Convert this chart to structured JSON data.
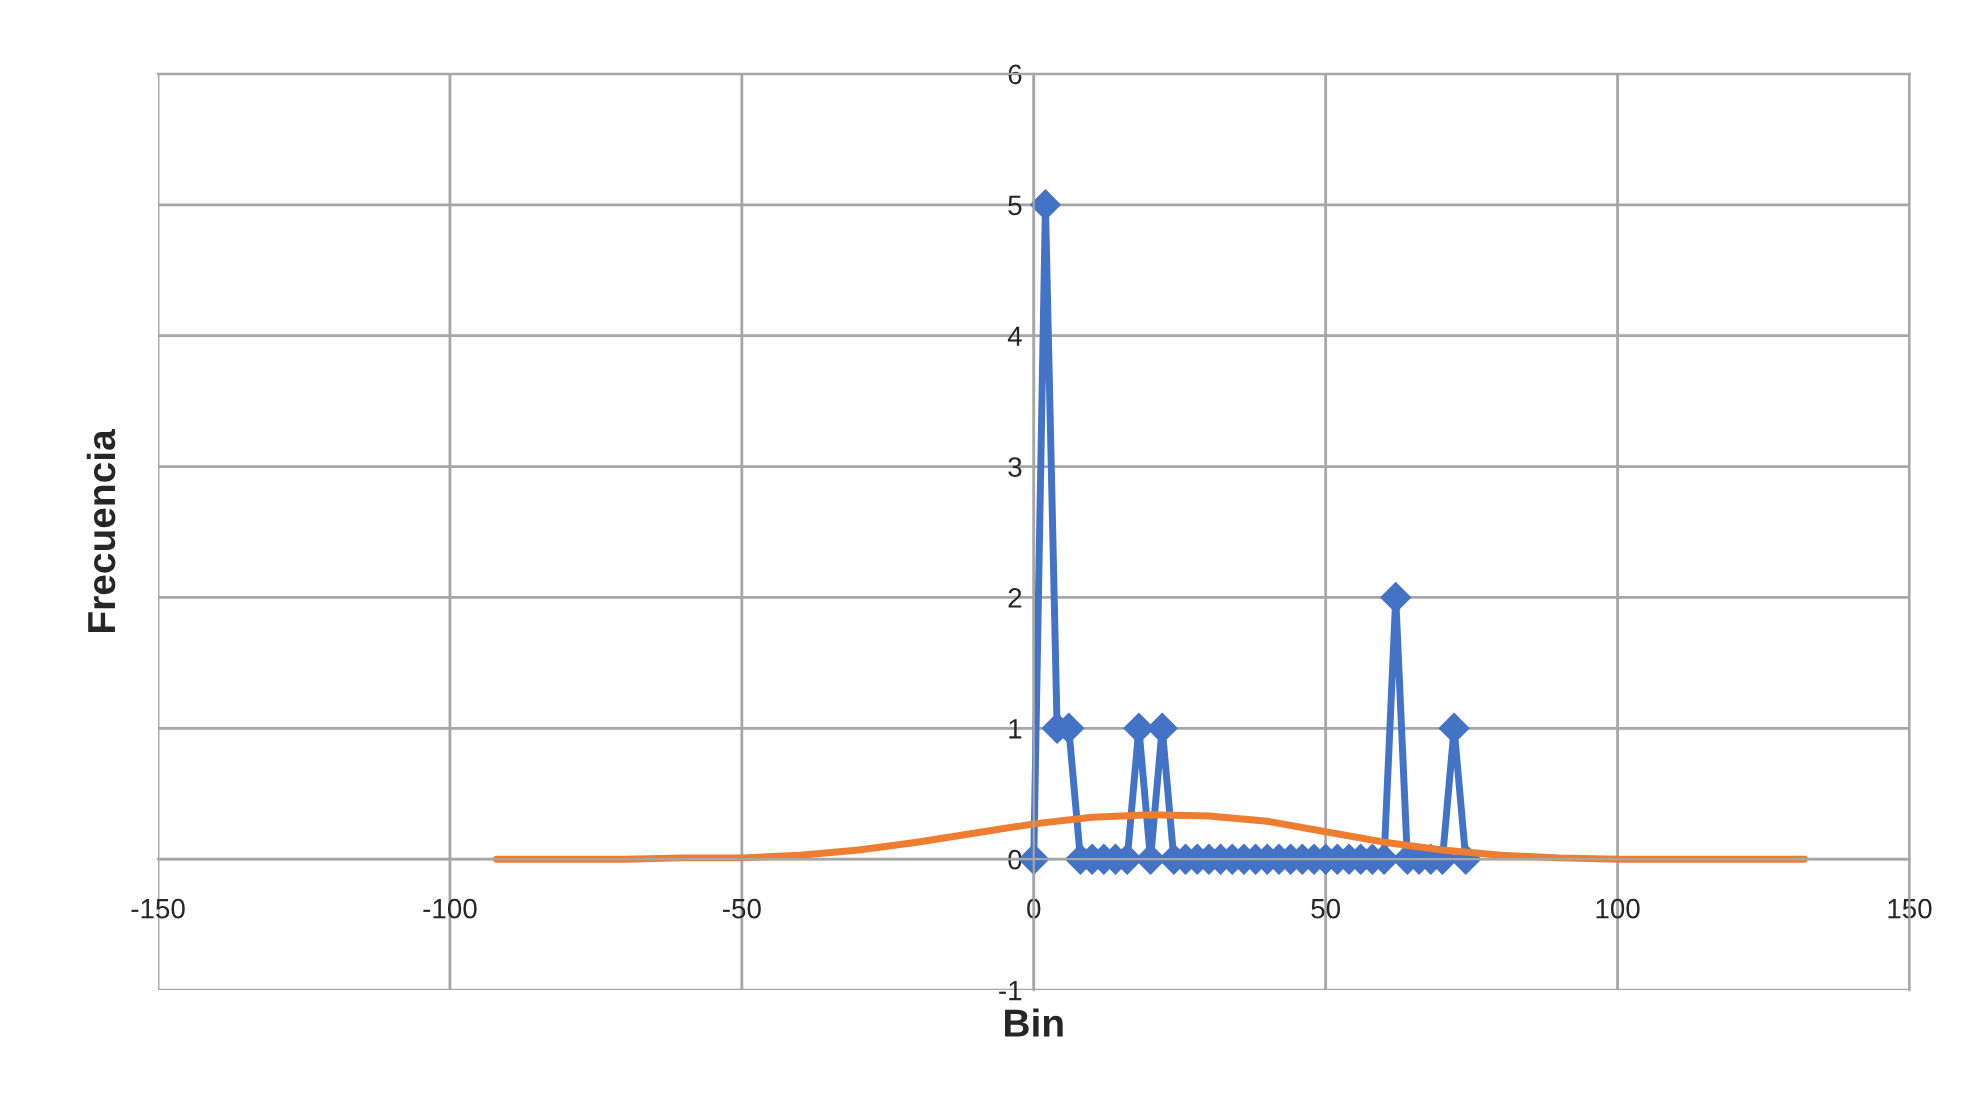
{
  "chart_data": {
    "type": "line",
    "xlabel": "Bin",
    "ylabel": "Frecuencia",
    "xlim": [
      -150,
      150
    ],
    "ylim": [
      -1,
      6
    ],
    "xticks": [
      -150,
      -100,
      -50,
      0,
      50,
      100,
      150
    ],
    "yticks": [
      -1,
      0,
      1,
      2,
      3,
      4,
      5,
      6
    ],
    "grid": true,
    "legend": false,
    "series": [
      {
        "color": "#4472c4",
        "marker": "diamond",
        "x": [
          0,
          2,
          4,
          6,
          8,
          10,
          12,
          14,
          16,
          18,
          20,
          22,
          24,
          26,
          28,
          30,
          32,
          34,
          36,
          38,
          40,
          42,
          44,
          46,
          48,
          50,
          52,
          54,
          56,
          58,
          60,
          62,
          64,
          66,
          68,
          70,
          72,
          74
        ],
        "values": [
          0,
          5,
          1,
          1,
          0,
          0,
          0,
          0,
          0,
          1,
          0,
          1,
          0,
          0,
          0,
          0,
          0,
          0,
          0,
          0,
          0,
          0,
          0,
          0,
          0,
          0,
          0,
          0,
          0,
          0,
          0,
          2,
          0,
          0,
          0,
          0,
          1,
          0
        ]
      },
      {
        "color": "#ed7d31",
        "marker": "none",
        "x": [
          -92,
          -80,
          -70,
          -60,
          -50,
          -40,
          -30,
          -20,
          -10,
          0,
          10,
          20,
          30,
          40,
          50,
          60,
          70,
          80,
          90,
          100,
          110,
          120,
          132
        ],
        "values": [
          0,
          0,
          0,
          0.01,
          0.01,
          0.03,
          0.07,
          0.13,
          0.2,
          0.27,
          0.32,
          0.34,
          0.33,
          0.29,
          0.21,
          0.13,
          0.07,
          0.03,
          0.01,
          0,
          0,
          0,
          0
        ]
      }
    ]
  }
}
